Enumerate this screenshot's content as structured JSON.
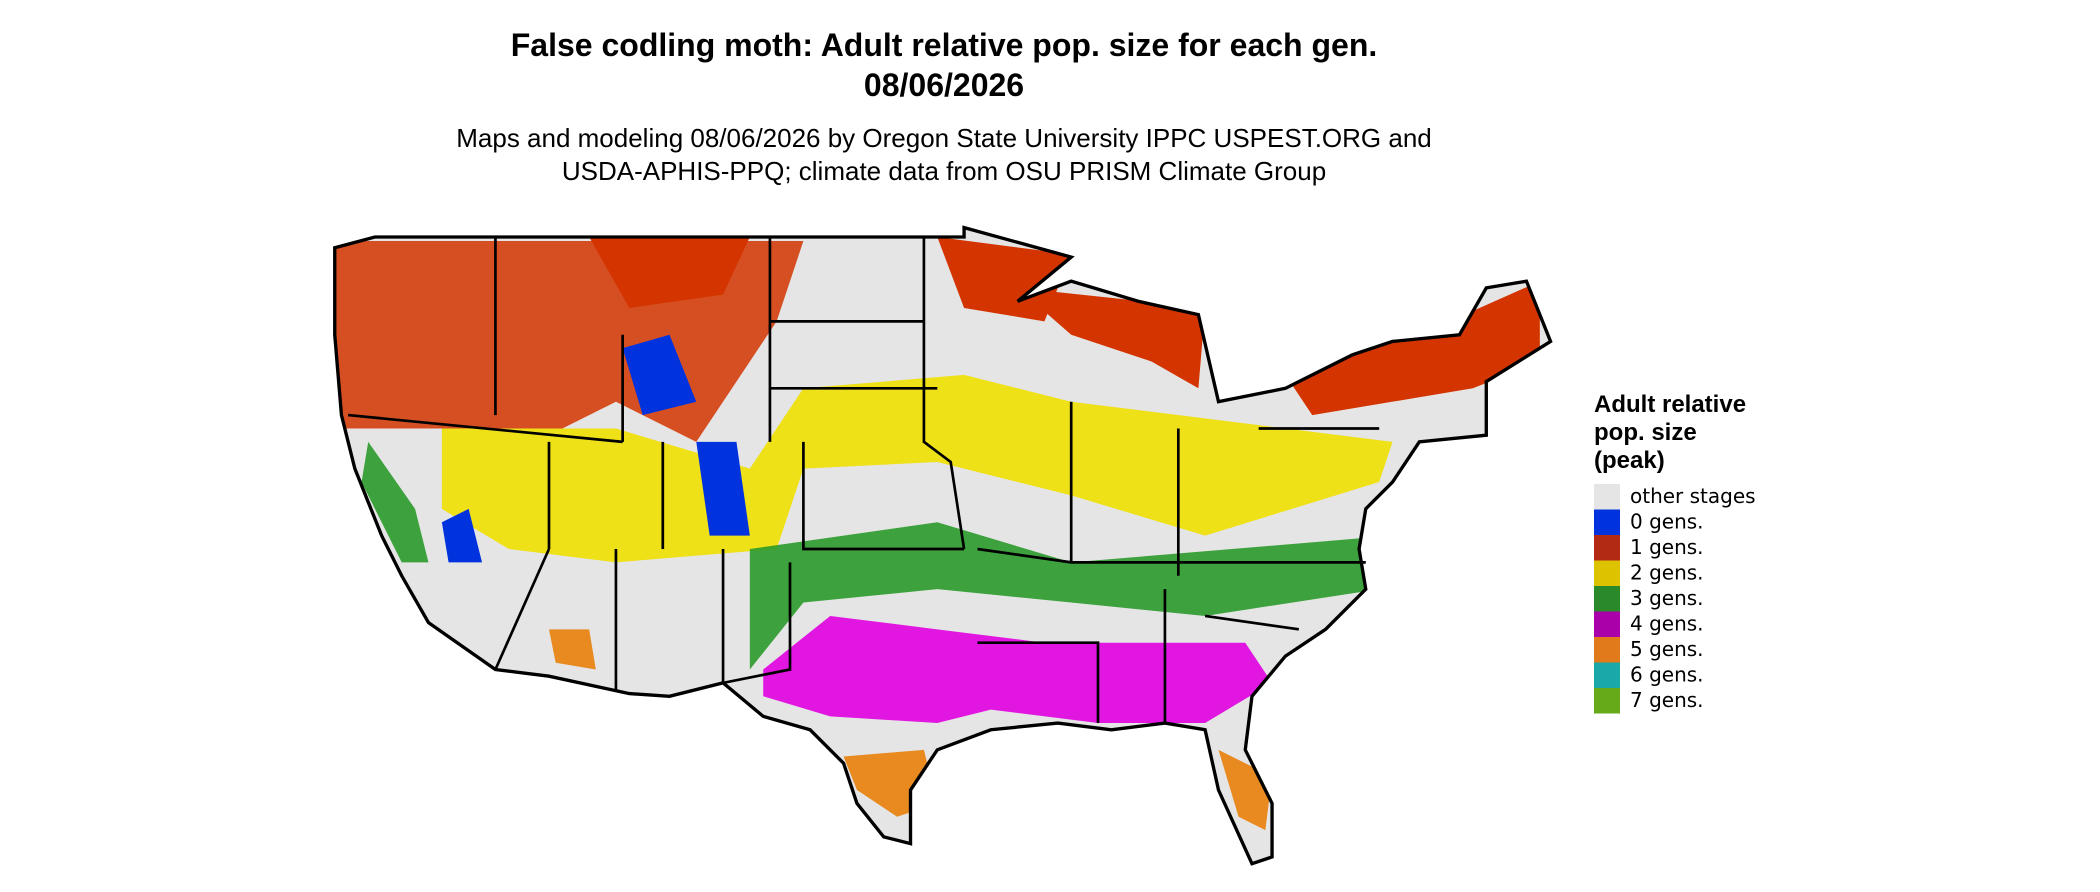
{
  "title": "False codling moth: Adult relative pop. size for each gen.",
  "date": "08/06/2026",
  "subtitle": [
    "Maps and modeling 08/06/2026 by Oregon State University IPPC USPEST.ORG and",
    "USDA-APHIS-PPQ; climate data from OSU PRISM Climate Group"
  ],
  "legend": {
    "title": [
      "Adult relative",
      "pop. size",
      "(peak)"
    ],
    "items": [
      {
        "label": "other stages",
        "color": "#e5e5e5"
      },
      {
        "label": "0 gens.",
        "color": "#0033dd"
      },
      {
        "label": "1 gens.",
        "color": "#b22a14"
      },
      {
        "label": "2 gens.",
        "color": "#ddc200"
      },
      {
        "label": "3 gens.",
        "color": "#2a8a2a"
      },
      {
        "label": "4 gens.",
        "color": "#aa00aa"
      },
      {
        "label": "5 gens.",
        "color": "#e07a1a"
      },
      {
        "label": "6 gens.",
        "color": "#1aa8a8"
      },
      {
        "label": "7 gens.",
        "color": "#66aa1a"
      }
    ]
  }
}
